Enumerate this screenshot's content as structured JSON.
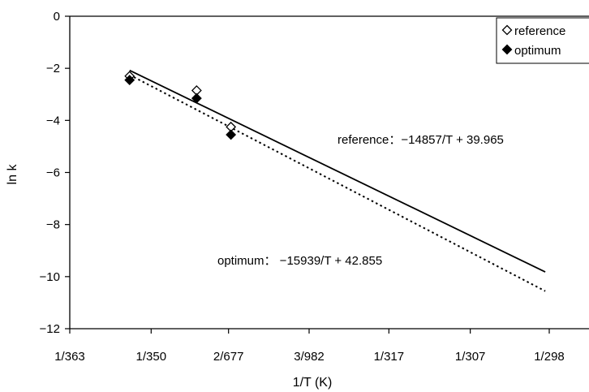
{
  "chart_data": {
    "type": "scatter",
    "title": "",
    "xlabel": "1/T (K)",
    "ylabel": "ln k",
    "x_axis": {
      "scale": "reciprocal temperature",
      "ticks": [
        {
          "value": 0.002755,
          "label": "1/363"
        },
        {
          "value": 0.002857,
          "label": "1/350"
        },
        {
          "value": 0.002954,
          "label": "2/677"
        },
        {
          "value": 0.003055,
          "label": "3/982"
        },
        {
          "value": 0.003155,
          "label": "1/317"
        },
        {
          "value": 0.003257,
          "label": "1/307"
        },
        {
          "value": 0.003356,
          "label": "1/298"
        }
      ],
      "range": [
        0.002755,
        0.003356
      ]
    },
    "ylim": [
      -12,
      0
    ],
    "yticks": [
      0,
      -2,
      -4,
      -6,
      -8,
      -10,
      -12
    ],
    "grid": false,
    "legend_position": "top-right",
    "series": [
      {
        "name": "reference",
        "marker": "open-diamond",
        "points": [
          {
            "x": 0.00283,
            "y": -2.3
          },
          {
            "x": 0.002914,
            "y": -2.85
          },
          {
            "x": 0.002957,
            "y": -4.25
          }
        ],
        "fit": {
          "equation": "reference：−14857/T + 39.965",
          "slope": -14857,
          "intercept": 39.965,
          "style": "solid",
          "x_range": [
            0.00283,
            0.003351
          ]
        }
      },
      {
        "name": "optimum",
        "marker": "filled-diamond",
        "points": [
          {
            "x": 0.00283,
            "y": -2.45
          },
          {
            "x": 0.002914,
            "y": -3.15
          },
          {
            "x": 0.002957,
            "y": -4.55
          }
        ],
        "fit": {
          "equation": "optimum： −15939/T + 42.855",
          "slope": -15939,
          "intercept": 42.855,
          "style": "dotted",
          "x_range": [
            0.00283,
            0.003351
          ]
        }
      }
    ]
  }
}
